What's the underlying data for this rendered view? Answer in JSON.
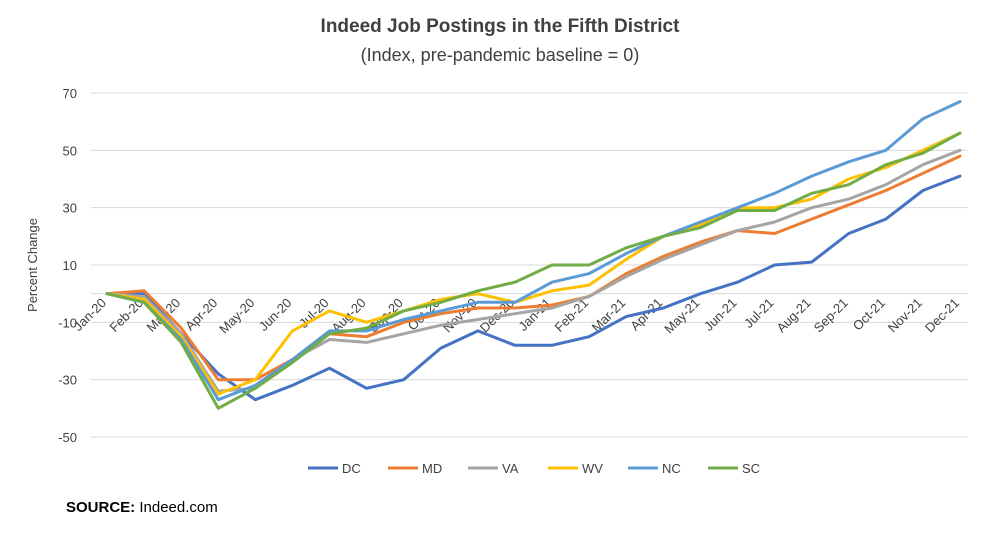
{
  "chart_data": {
    "type": "line",
    "title": "Indeed Job Postings in the Fifth District",
    "subtitle": "(Index, pre-pandemic baseline = 0)",
    "ylabel": "Percent Change",
    "xlabel": "",
    "ylim": [
      -50,
      70
    ],
    "yticks": [
      70,
      50,
      30,
      10,
      -10,
      -30,
      -50
    ],
    "grid": true,
    "legend": "bottom",
    "categories": [
      "Jan-20",
      "Feb-20",
      "Mar-20",
      "Apr-20",
      "May-20",
      "Jun-20",
      "Jul-20",
      "Aug-20",
      "Sep-20",
      "Oct-20",
      "Nov-20",
      "Dec-20",
      "Jan-21",
      "Feb-21",
      "Mar-21",
      "Apr-21",
      "May-21",
      "Jun-21",
      "Jul-21",
      "Aug-21",
      "Sep-21",
      "Oct-21",
      "Nov-21",
      "Dec-21"
    ],
    "series": [
      {
        "name": "DC",
        "color": "#4472C4",
        "values": [
          0,
          0,
          -14,
          -28,
          -37,
          -32,
          -26,
          -33,
          -30,
          -19,
          -13,
          -18,
          -18,
          -15,
          -8,
          -5,
          0,
          4,
          10,
          11,
          21,
          26,
          36,
          41
        ]
      },
      {
        "name": "MD",
        "color": "#ED7D31",
        "values": [
          0,
          1,
          -12,
          -30,
          -30,
          -23,
          -14,
          -15,
          -10,
          -7,
          -5,
          -5,
          -4,
          -1,
          7,
          13,
          18,
          22,
          21,
          26,
          31,
          36,
          42,
          48
        ]
      },
      {
        "name": "VA",
        "color": "#A5A5A5",
        "values": [
          0,
          -1,
          -14,
          -34,
          -33,
          -23,
          -16,
          -17,
          -14,
          -11,
          -9,
          -7,
          -5,
          -1,
          6,
          12,
          17,
          22,
          25,
          30,
          33,
          38,
          45,
          50
        ]
      },
      {
        "name": "WV",
        "color": "#FFC000",
        "values": [
          0,
          -2,
          -15,
          -35,
          -30,
          -13,
          -6,
          -10,
          -6,
          -2,
          0,
          -3,
          1,
          3,
          12,
          20,
          24,
          30,
          30,
          33,
          40,
          44,
          50,
          56
        ]
      },
      {
        "name": "NC",
        "color": "#5B9BD5",
        "values": [
          0,
          -3,
          -16,
          -37,
          -32,
          -23,
          -13,
          -13,
          -9,
          -6,
          -3,
          -3,
          4,
          7,
          14,
          20,
          25,
          30,
          35,
          41,
          46,
          50,
          61,
          67
        ]
      },
      {
        "name": "SC",
        "color": "#70AD47",
        "values": [
          0,
          -3,
          -17,
          -40,
          -33,
          -24,
          -14,
          -12,
          -6,
          -3,
          1,
          4,
          10,
          10,
          16,
          20,
          23,
          29,
          29,
          35,
          38,
          45,
          49,
          56
        ]
      }
    ]
  },
  "source": {
    "label": "SOURCE:",
    "text": "Indeed.com"
  }
}
